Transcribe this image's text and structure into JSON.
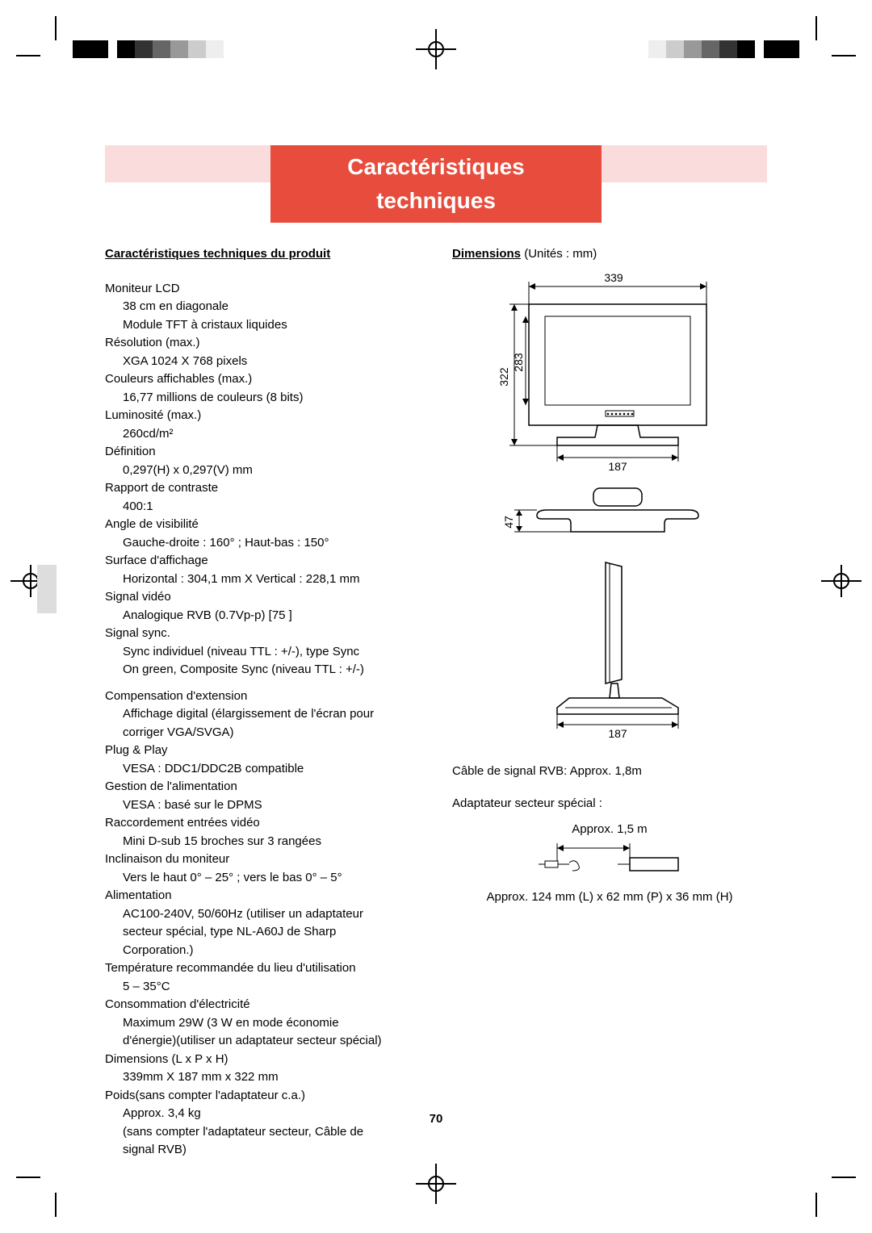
{
  "page": {
    "title": "Caractéristiques techniques",
    "page_number": "70",
    "title_bg": "#e74c3c",
    "title_bg_light": "#f8d7d5"
  },
  "left_column": {
    "heading": "Caractéristiques techniques du produit",
    "specs": [
      {
        "label": "Moniteur LCD",
        "sub": [
          "38 cm en diagonale",
          "Module TFT à cristaux liquides"
        ]
      },
      {
        "label": "Résolution (max.)",
        "sub": [
          "XGA 1024 X 768 pixels"
        ]
      },
      {
        "label": "Couleurs affichables (max.)",
        "sub": [
          "16,77 millions de couleurs (8 bits)"
        ]
      },
      {
        "label": "Luminosité (max.)",
        "sub": [
          "260cd/m²"
        ]
      },
      {
        "label": "Définition",
        "sub": [
          "0,297(H) x 0,297(V) mm"
        ]
      },
      {
        "label": "Rapport de contraste",
        "sub": [
          "400:1"
        ]
      },
      {
        "label": "Angle de visibilité",
        "sub": [
          "Gauche-droite : 160° ; Haut-bas : 150°"
        ]
      },
      {
        "label": "Surface d'affichage",
        "sub": [
          "Horizontal : 304,1 mm X Vertical : 228,1 mm"
        ]
      },
      {
        "label": "Signal vidéo",
        "sub": [
          "Analogique RVB (0.7Vp-p) [75   ]"
        ]
      },
      {
        "label": "Signal sync.",
        "sub": [
          "Sync individuel (niveau TTL : +/-),  type Sync",
          "On green, Composite Sync (niveau TTL : +/-)"
        ]
      },
      {
        "label": "Compensation d'extension",
        "sub": [
          "Affichage digital (élargissement de l'écran pour",
          "corriger VGA/SVGA)"
        ]
      },
      {
        "label": "Plug & Play",
        "sub": [
          "VESA :    DDC1/DDC2B compatible"
        ]
      },
      {
        "label": "Gestion de l'alimentation",
        "sub": [
          "VESA :    basé sur le DPMS"
        ]
      },
      {
        "label": "Raccordement entrées vidéo",
        "sub": [
          "Mini D-sub 15 broches sur 3 rangées"
        ]
      },
      {
        "label": "Inclinaison du moniteur",
        "sub": [
          "Vers le haut 0° – 25° ; vers le bas 0° – 5°"
        ]
      },
      {
        "label": "Alimentation",
        "sub": [
          "AC100-240V, 50/60Hz (utiliser un adaptateur",
          "secteur spécial, type NL-A60J de Sharp",
          "Corporation.)"
        ]
      },
      {
        "label": "Température recommandée du lieu d'utilisation",
        "sub": [
          "5 – 35°C"
        ]
      },
      {
        "label": "Consommation d'électricité",
        "sub": [
          "Maximum 29W (3 W en mode économie",
          "d'énergie)(utiliser un adaptateur secteur spécial)"
        ]
      },
      {
        "label": "Dimensions (L x P x H)",
        "sub": [
          "339mm X 187 mm x 322 mm"
        ]
      },
      {
        "label": "Poids(sans compter l'adaptateur c.a.)",
        "sub": [
          "Approx. 3,4 kg",
          "(sans compter l'adaptateur secteur, Câble de",
          "signal RVB)"
        ]
      }
    ]
  },
  "right_column": {
    "heading": "Dimensions",
    "heading_suffix": " (Unités : mm)",
    "dim_front_width": "339",
    "dim_front_height": "322",
    "dim_screen_height": "283",
    "dim_base_width_1": "187",
    "dim_side_base_height": "47",
    "dim_base_width_2": "187",
    "cable_note": "Câble de signal RVB: Approx. 1,8m",
    "adapter_note": "Adaptateur secteur spécial :",
    "adapter_length": "Approx. 1,5 m",
    "adapter_dims": "Approx. 124 mm (L) x 62 mm (P) x 36 mm (H)"
  }
}
